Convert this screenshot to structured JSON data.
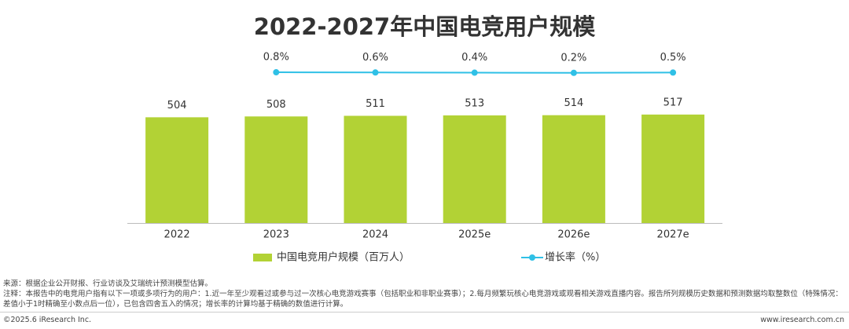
{
  "chart_data": {
    "type": "bar-line",
    "title": "2022-2027年中国电竞用户规模",
    "categories": [
      "2022",
      "2023",
      "2024",
      "2025e",
      "2026e",
      "2027e"
    ],
    "series": [
      {
        "name": "中国电竞用户规模（百万人）",
        "type": "bar",
        "color": "#b2d235",
        "values": [
          504,
          508,
          511,
          513,
          514,
          517
        ]
      },
      {
        "name": "增长率（%）",
        "type": "line",
        "axis": "y2",
        "color": "#2fc0e6",
        "values": [
          null,
          0.8,
          0.6,
          0.4,
          0.2,
          0.5
        ],
        "value_labels": [
          null,
          "0.8%",
          "0.6%",
          "0.4%",
          "0.2%",
          "0.5%"
        ]
      }
    ],
    "ylim": [
      0,
      700
    ],
    "y2lim": [
      -50,
      50
    ],
    "legend": "bottom"
  },
  "footer": {
    "source": "来源：根据企业公开财报、行业访谈及艾瑞统计预测模型估算。",
    "note": "注释：本报告中的电竞用户指有以下一项或多项行为的用户：1.近一年至少观看过或参与过一次核心电竞游戏赛事（包括职业和非职业赛事）；2.每月频繁玩核心电竞游戏或观看相关游戏直播内容。报告所列规模历史数据和预测数据均取整数位（特殊情况：差值小于1时精确至小数点后一位），已包含四舍五入的情况；增长率的计算均基于精确的数值进行计算。",
    "copyright": "©2025.6 iResearch Inc.",
    "website": "www.iresearch.com.cn"
  }
}
